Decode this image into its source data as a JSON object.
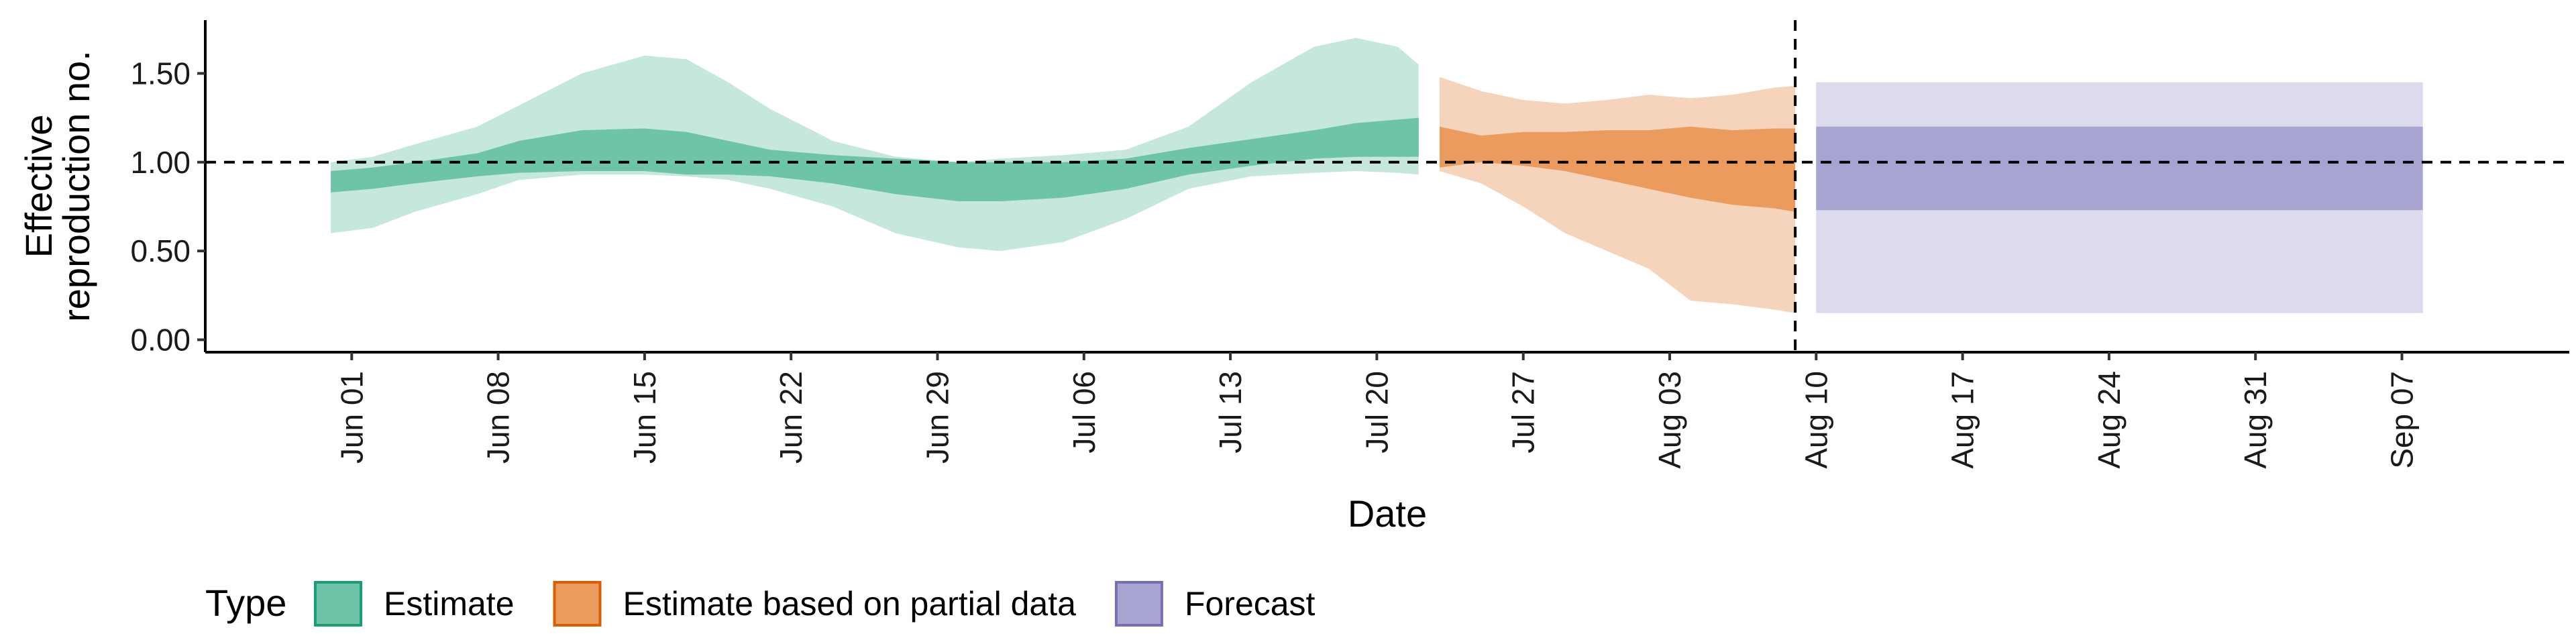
{
  "chart_data": {
    "type": "area",
    "xlabel": "Date",
    "ylabel_lines": [
      "Effective",
      "reproduction no."
    ],
    "x_ticks": [
      "Jun 01",
      "Jun 08",
      "Jun 15",
      "Jun 22",
      "Jun 29",
      "Jul 06",
      "Jul 13",
      "Jul 20",
      "Jul 27",
      "Aug 03",
      "Aug 10",
      "Aug 17",
      "Aug 24",
      "Aug 31",
      "Sep 07"
    ],
    "x_tick_dates": [
      "2020-06-01",
      "2020-06-08",
      "2020-06-15",
      "2020-06-22",
      "2020-06-29",
      "2020-07-06",
      "2020-07-13",
      "2020-07-20",
      "2020-07-27",
      "2020-08-03",
      "2020-08-10",
      "2020-08-17",
      "2020-08-24",
      "2020-08-31",
      "2020-09-07"
    ],
    "xlim": [
      "2020-05-25",
      "2020-09-15"
    ],
    "y_ticks": [
      "0.00",
      "0.50",
      "1.00",
      "1.50"
    ],
    "y_tick_values": [
      0,
      0.5,
      1.0,
      1.5
    ],
    "ylim": [
      -0.07,
      1.8
    ],
    "reference_line_y": 1.0,
    "reference_line_x": "2020-08-09",
    "legend": {
      "title": "Type",
      "position": "bottom",
      "items": [
        {
          "label": "Estimate",
          "fill": "#6ec4a8",
          "stroke": "#1b9e77"
        },
        {
          "label": "Estimate based on partial data",
          "fill": "#eb9b5e",
          "stroke": "#d95f02"
        },
        {
          "label": "Forecast",
          "fill": "#a8a4d2",
          "stroke": "#7570b3"
        }
      ]
    },
    "series": [
      {
        "name": "Estimate",
        "color_outer": "#c5e7dc",
        "color_inner": "#6ec4a8",
        "dates": [
          "2020-05-31",
          "2020-06-02",
          "2020-06-04",
          "2020-06-07",
          "2020-06-09",
          "2020-06-12",
          "2020-06-15",
          "2020-06-17",
          "2020-06-19",
          "2020-06-21",
          "2020-06-24",
          "2020-06-27",
          "2020-06-30",
          "2020-07-02",
          "2020-07-05",
          "2020-07-08",
          "2020-07-11",
          "2020-07-14",
          "2020-07-17",
          "2020-07-19",
          "2020-07-21",
          "2020-07-22"
        ],
        "upper_90": [
          1.0,
          1.03,
          1.1,
          1.2,
          1.32,
          1.5,
          1.6,
          1.58,
          1.45,
          1.3,
          1.12,
          1.03,
          1.0,
          1.02,
          1.04,
          1.07,
          1.2,
          1.45,
          1.65,
          1.7,
          1.65,
          1.55
        ],
        "upper_50": [
          0.95,
          0.97,
          1.0,
          1.05,
          1.12,
          1.18,
          1.19,
          1.17,
          1.12,
          1.07,
          1.04,
          1.02,
          1.0,
          1.0,
          1.0,
          1.02,
          1.08,
          1.13,
          1.18,
          1.22,
          1.24,
          1.25
        ],
        "lower_50": [
          0.83,
          0.85,
          0.88,
          0.92,
          0.94,
          0.95,
          0.95,
          0.93,
          0.93,
          0.92,
          0.88,
          0.82,
          0.78,
          0.78,
          0.8,
          0.85,
          0.93,
          0.98,
          1.02,
          1.03,
          1.03,
          1.03
        ],
        "lower_90": [
          0.6,
          0.63,
          0.72,
          0.82,
          0.9,
          0.93,
          0.93,
          0.92,
          0.9,
          0.85,
          0.75,
          0.6,
          0.52,
          0.5,
          0.55,
          0.68,
          0.85,
          0.92,
          0.94,
          0.95,
          0.94,
          0.93
        ]
      },
      {
        "name": "Estimate based on partial data",
        "color_outer": "#f5d4bb",
        "color_inner": "#eb9b5e",
        "dates": [
          "2020-07-23",
          "2020-07-25",
          "2020-07-27",
          "2020-07-29",
          "2020-07-31",
          "2020-08-02",
          "2020-08-04",
          "2020-08-06",
          "2020-08-08",
          "2020-08-09"
        ],
        "upper_90": [
          1.48,
          1.4,
          1.35,
          1.33,
          1.35,
          1.38,
          1.36,
          1.38,
          1.42,
          1.43
        ],
        "upper_50": [
          1.2,
          1.15,
          1.17,
          1.17,
          1.18,
          1.18,
          1.2,
          1.18,
          1.19,
          1.19
        ],
        "lower_50": [
          0.97,
          1.0,
          0.98,
          0.95,
          0.9,
          0.85,
          0.8,
          0.76,
          0.74,
          0.72
        ],
        "lower_90": [
          0.95,
          0.88,
          0.75,
          0.6,
          0.5,
          0.4,
          0.22,
          0.2,
          0.17,
          0.15
        ]
      },
      {
        "name": "Forecast",
        "color_outer": "#dcdbed",
        "color_inner": "#a8a4d2",
        "dates": [
          "2020-08-10",
          "2020-09-08"
        ],
        "upper_90": [
          1.45,
          1.45
        ],
        "upper_50": [
          1.2,
          1.2
        ],
        "lower_50": [
          0.73,
          0.73
        ],
        "lower_90": [
          0.15,
          0.15
        ]
      }
    ]
  }
}
